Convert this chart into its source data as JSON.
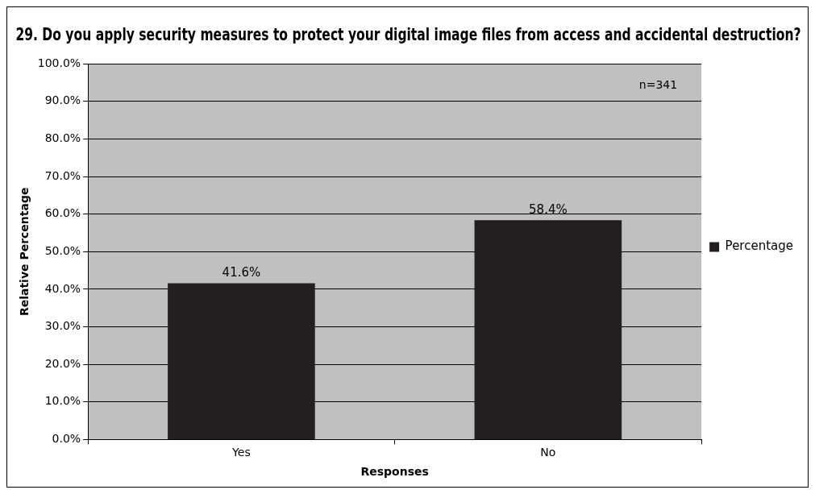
{
  "chart_data": {
    "type": "bar",
    "title": "29. Do you apply security measures to protect your digital image files from access and accidental destruction?",
    "xlabel": "Responses",
    "ylabel": "Relative Percentage",
    "categories": [
      "Yes",
      "No"
    ],
    "series": [
      {
        "name": "Percentage",
        "color": "#231f20",
        "values": [
          41.6,
          58.4
        ],
        "value_labels": [
          "41.6%",
          "58.4%"
        ]
      }
    ],
    "ylim": [
      0,
      100
    ],
    "yticks": [
      {
        "value": 0,
        "label": "0.0%"
      },
      {
        "value": 10,
        "label": "10.0%"
      },
      {
        "value": 20,
        "label": "20.0%"
      },
      {
        "value": 30,
        "label": "30.0%"
      },
      {
        "value": 40,
        "label": "40.0%"
      },
      {
        "value": 50,
        "label": "50.0%"
      },
      {
        "value": 60,
        "label": "60.0%"
      },
      {
        "value": 70,
        "label": "70.0%"
      },
      {
        "value": 80,
        "label": "80.0%"
      },
      {
        "value": 90,
        "label": "90.0%"
      },
      {
        "value": 100,
        "label": "100.0%"
      }
    ],
    "annotations": [
      "n=341"
    ],
    "grid": "y",
    "legend": "right"
  }
}
